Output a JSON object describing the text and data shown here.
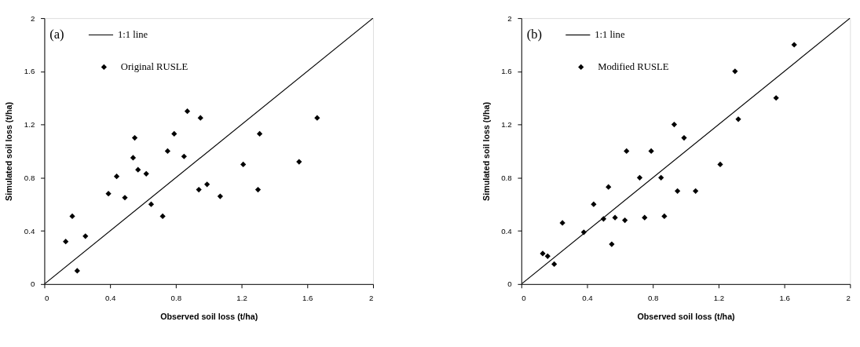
{
  "chart_data": [
    {
      "type": "scatter",
      "xlabel": "Observed soil loss (t/ha)",
      "ylabel": "Simulated soil loss (t/ha)",
      "annotations": [
        "(a)"
      ],
      "xlim": [
        0,
        2
      ],
      "ylim": [
        0,
        2
      ],
      "xticks": [
        0,
        0.4,
        0.8,
        1.2,
        1.6,
        2
      ],
      "yticks": [
        0,
        0.4,
        0.8,
        1.2,
        1.6,
        2
      ],
      "grid": false,
      "legend": "top left",
      "series": [
        {
          "name": "1:1 line",
          "type": "line",
          "color": "#000000",
          "line_style": "solid",
          "marker": "none",
          "x": [
            0,
            2
          ],
          "values": [
            0,
            2
          ]
        },
        {
          "name": "Original RUSLE",
          "type": "scatter",
          "color": "#000000",
          "marker": "diamond",
          "x": [
            0.13,
            0.17,
            0.2,
            0.25,
            0.39,
            0.44,
            0.49,
            0.54,
            0.55,
            0.57,
            0.62,
            0.65,
            0.72,
            0.75,
            0.79,
            0.85,
            0.87,
            0.94,
            0.95,
            0.99,
            1.07,
            1.21,
            1.3,
            1.31,
            1.55,
            1.66
          ],
          "values": [
            0.32,
            0.51,
            0.1,
            0.36,
            0.68,
            0.81,
            0.65,
            0.95,
            1.1,
            0.86,
            0.83,
            0.6,
            0.51,
            1.0,
            1.13,
            0.96,
            1.3,
            0.71,
            1.25,
            0.75,
            0.66,
            0.9,
            0.71,
            1.13,
            0.92,
            1.25
          ]
        }
      ]
    },
    {
      "type": "scatter",
      "xlabel": "Observed soil loss (t/ha)",
      "ylabel": "Simulated soil loss (t/ha)",
      "annotations": [
        "(b)"
      ],
      "xlim": [
        0,
        2
      ],
      "ylim": [
        0,
        2
      ],
      "xticks": [
        0,
        0.4,
        0.8,
        1.2,
        1.6,
        2
      ],
      "yticks": [
        0,
        0.4,
        0.8,
        1.2,
        1.6,
        2
      ],
      "grid": false,
      "legend": "top left",
      "series": [
        {
          "name": "1:1 line",
          "type": "line",
          "color": "#000000",
          "line_style": "solid",
          "marker": "none",
          "x": [
            0,
            2
          ],
          "values": [
            0,
            2
          ]
        },
        {
          "name": "Modified RUSLE",
          "type": "scatter",
          "color": "#000000",
          "marker": "diamond",
          "x": [
            0.13,
            0.16,
            0.2,
            0.25,
            0.38,
            0.44,
            0.5,
            0.53,
            0.55,
            0.57,
            0.63,
            0.64,
            0.72,
            0.75,
            0.79,
            0.85,
            0.87,
            0.93,
            0.95,
            0.99,
            1.06,
            1.21,
            1.3,
            1.32,
            1.55,
            1.66
          ],
          "values": [
            0.23,
            0.21,
            0.15,
            0.46,
            0.39,
            0.6,
            0.49,
            0.73,
            0.3,
            0.5,
            0.48,
            1.0,
            0.8,
            0.5,
            1.0,
            0.8,
            0.51,
            1.2,
            0.7,
            1.1,
            0.7,
            0.9,
            1.6,
            1.24,
            1.4,
            1.8
          ]
        }
      ]
    }
  ]
}
